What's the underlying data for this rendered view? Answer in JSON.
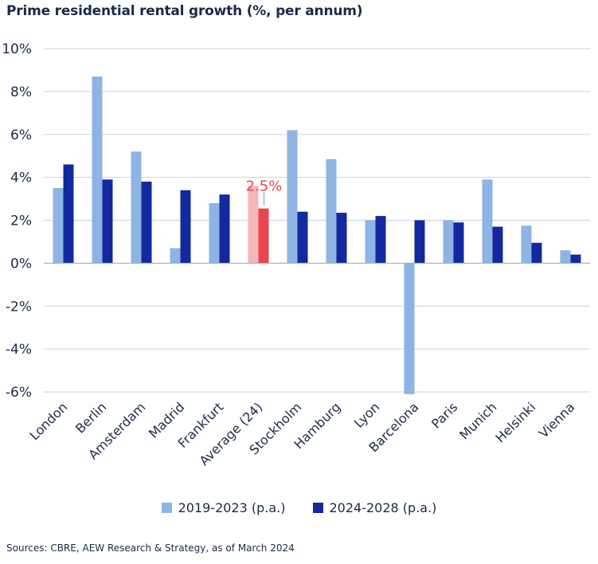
{
  "chart_data": {
    "type": "bar",
    "title": "Prime residential rental growth (%, per annum)",
    "categories": [
      "London",
      "Berlin",
      "Amsterdam",
      "Madrid",
      "Frankfurt",
      "Average (24)",
      "Stockholm",
      "Hamburg",
      "Lyon",
      "Barcelona",
      "Paris",
      "Munich",
      "Helsinki",
      "Vienna"
    ],
    "series": [
      {
        "name": "2019-2023 (p.a.)",
        "color": "#8eb4e3",
        "values": [
          3.5,
          8.7,
          5.2,
          0.7,
          2.8,
          3.6,
          6.2,
          4.85,
          2.0,
          -6.1,
          2.0,
          3.9,
          1.75,
          0.6
        ]
      },
      {
        "name": "2024-2028 (p.a.)",
        "color": "#1428a0",
        "values": [
          4.6,
          3.9,
          3.8,
          3.4,
          3.2,
          2.55,
          2.4,
          2.35,
          2.2,
          2.0,
          1.9,
          1.7,
          0.95,
          0.4
        ]
      }
    ],
    "highlight": {
      "category": "Average (24)",
      "colors": [
        "#f4b6b8",
        "#e8474e"
      ],
      "label": "2.5%"
    },
    "ylim": [
      -6,
      10
    ],
    "yticks": [
      -6,
      -4,
      -2,
      0,
      2,
      4,
      6,
      8,
      10
    ],
    "ytick_labels": [
      "-6%",
      "-4%",
      "-2%",
      "0%",
      "2%",
      "4%",
      "6%",
      "8%",
      "10%"
    ],
    "grid": true,
    "legend_position": "bottom-center"
  },
  "source": "Sources: CBRE, AEW Research & Strategy, as of March 2024"
}
